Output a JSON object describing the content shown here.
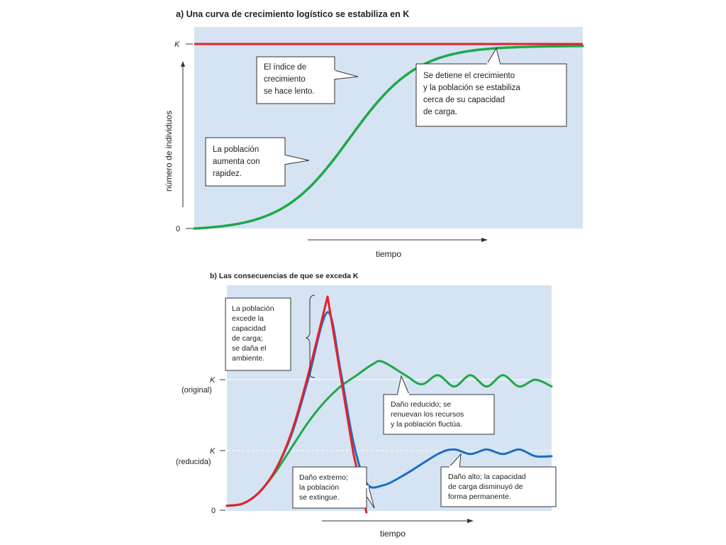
{
  "chart_data": [
    {
      "type": "line",
      "title": "a) Una curva de crecimiento logístico se estabiliza en K",
      "xlabel": "tiempo",
      "ylabel": "número de individuos",
      "y_ticks": [
        "0",
        "K"
      ],
      "x": [
        0,
        10
      ],
      "ylim": [
        0,
        1
      ],
      "series": [
        {
          "key": "logistic",
          "color": "#1fa84a",
          "kind": "logistic",
          "k": 1.0,
          "midpoint": 4.0,
          "rate": 1.15
        },
        {
          "key": "capacity",
          "color": "#e8202a",
          "kind": "constant",
          "value": 1.0
        }
      ],
      "annotations": [
        {
          "lines": [
            "El índice de",
            "crecimiento",
            "se hace lento."
          ]
        },
        {
          "lines": [
            "Se detiene el crecimiento",
            "y la población se estabiliza",
            "cerca de su capacidad",
            "de carga."
          ]
        },
        {
          "lines": [
            "La población",
            "aumenta con",
            "rapidez."
          ]
        }
      ]
    },
    {
      "type": "line",
      "title": "b) Las consecuencias de que se exceda K",
      "xlabel": "tiempo",
      "y_ticks": [
        {
          "label": "K",
          "sublabel": "(original)",
          "value": 0.58
        },
        {
          "label": "K",
          "sublabel": "(reducida)",
          "value": 0.27
        },
        {
          "label": "0",
          "sublabel": "",
          "value": 0.0
        }
      ],
      "ylim": [
        0,
        1
      ],
      "xlim": [
        0,
        10
      ],
      "series": [
        {
          "key": "extreme",
          "color": "#e8202a",
          "points": [
            [
              0,
              0.02
            ],
            [
              0.5,
              0.03
            ],
            [
              1.0,
              0.08
            ],
            [
              1.5,
              0.18
            ],
            [
              2.0,
              0.35
            ],
            [
              2.5,
              0.6
            ],
            [
              3.1,
              0.95
            ],
            [
              3.5,
              0.6
            ],
            [
              3.9,
              0.25
            ],
            [
              4.3,
              -0.01
            ]
          ]
        },
        {
          "key": "high",
          "color": "#1b6fc0",
          "points": [
            [
              0,
              0.02
            ],
            [
              0.5,
              0.03
            ],
            [
              1.0,
              0.08
            ],
            [
              1.5,
              0.18
            ],
            [
              2.0,
              0.34
            ],
            [
              2.5,
              0.58
            ],
            [
              3.1,
              0.88
            ],
            [
              3.5,
              0.62
            ],
            [
              3.9,
              0.3
            ],
            [
              4.3,
              0.12
            ],
            [
              4.8,
              0.11
            ],
            [
              5.5,
              0.16
            ],
            [
              6.5,
              0.25
            ],
            [
              7.0,
              0.27
            ],
            [
              7.5,
              0.25
            ],
            [
              8.0,
              0.27
            ],
            [
              8.5,
              0.25
            ],
            [
              9.0,
              0.27
            ],
            [
              9.5,
              0.24
            ],
            [
              10,
              0.24
            ]
          ]
        },
        {
          "key": "reduced",
          "color": "#1fa84a",
          "points": [
            [
              0,
              0.02
            ],
            [
              0.5,
              0.03
            ],
            [
              1.0,
              0.08
            ],
            [
              1.5,
              0.17
            ],
            [
              2.0,
              0.28
            ],
            [
              2.5,
              0.39
            ],
            [
              3.0,
              0.48
            ],
            [
              3.5,
              0.55
            ],
            [
              4.0,
              0.6
            ],
            [
              4.5,
              0.65
            ],
            [
              4.8,
              0.66
            ],
            [
              5.5,
              0.6
            ],
            [
              6.0,
              0.56
            ],
            [
              6.5,
              0.6
            ],
            [
              7.0,
              0.55
            ],
            [
              7.5,
              0.6
            ],
            [
              8.0,
              0.55
            ],
            [
              8.5,
              0.6
            ],
            [
              9.0,
              0.55
            ],
            [
              9.5,
              0.58
            ],
            [
              10,
              0.55
            ]
          ]
        }
      ],
      "annotations": [
        {
          "lines": [
            "La población",
            "excede la",
            "capacidad",
            "de carga;",
            "se daña el",
            "ambiente."
          ]
        },
        {
          "lines": [
            "Daño reducido; se",
            "renuevan los recursos",
            "y la población fluctúa."
          ]
        },
        {
          "lines": [
            "Daño extremo;",
            "la población",
            "se extingue."
          ]
        },
        {
          "lines": [
            "Daño alto; la capacidad",
            "de carga disminuyó de",
            "forma permanente."
          ]
        }
      ]
    }
  ]
}
